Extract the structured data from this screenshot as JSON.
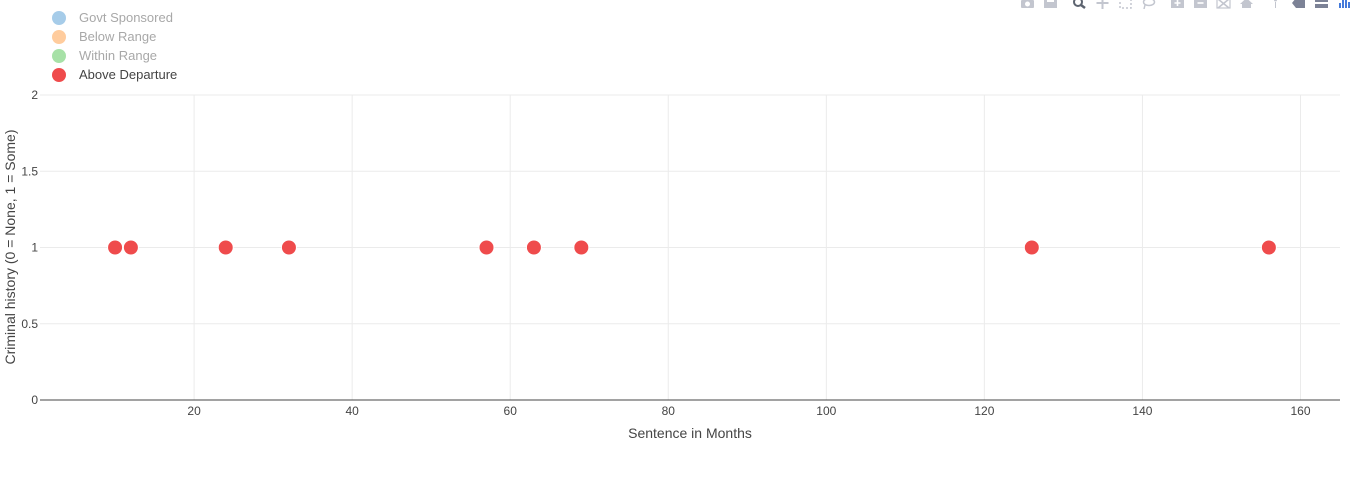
{
  "toolbar": {
    "icons": [
      "camera-icon",
      "save-icon",
      "zoom-icon",
      "pan-icon",
      "box-select-icon",
      "lasso-icon",
      "zoom-in-icon",
      "zoom-out-icon",
      "autoscale-icon",
      "home-icon",
      "spike-lines-icon",
      "compare-hover-icon",
      "closest-hover-icon",
      "plotly-logo"
    ]
  },
  "legend": {
    "items": [
      {
        "label": "Govt Sponsored",
        "color": "#a6cce9",
        "active": false
      },
      {
        "label": "Below Range",
        "color": "#ffcc9d",
        "active": false
      },
      {
        "label": "Within Range",
        "color": "#a7e1a7",
        "active": false
      },
      {
        "label": "Above Departure",
        "color": "#ef4b4c",
        "active": true
      }
    ]
  },
  "chart_data": {
    "type": "scatter",
    "xlabel": "Sentence in Months",
    "ylabel": "Criminal history (0 = None, 1 = Some)",
    "xlim": [
      0.5,
      165
    ],
    "ylim": [
      0,
      2
    ],
    "xticks": [
      20,
      40,
      60,
      80,
      100,
      120,
      140,
      160
    ],
    "yticks": [
      0,
      0.5,
      1,
      1.5,
      2
    ],
    "grid": true,
    "legend_position": "top-left",
    "series": [
      {
        "name": "Above Departure",
        "color": "#ef4b4c",
        "x": [
          10,
          12,
          24,
          32,
          57,
          63,
          69,
          126,
          156
        ],
        "y": [
          1,
          1,
          1,
          1,
          1,
          1,
          1,
          1,
          1
        ]
      }
    ]
  }
}
